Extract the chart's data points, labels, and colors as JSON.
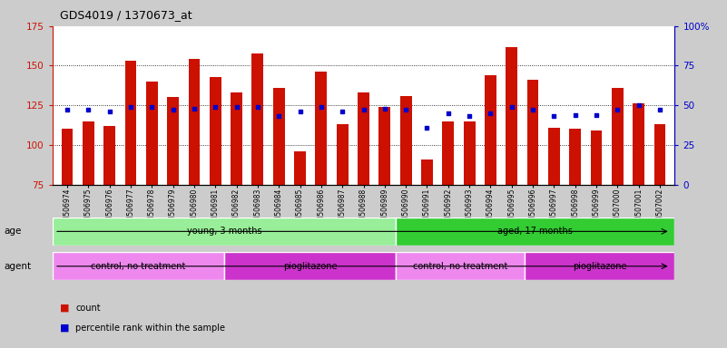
{
  "title": "GDS4019 / 1370673_at",
  "samples": [
    "GSM506974",
    "GSM506975",
    "GSM506976",
    "GSM506977",
    "GSM506978",
    "GSM506979",
    "GSM506980",
    "GSM506981",
    "GSM506982",
    "GSM506983",
    "GSM506984",
    "GSM506985",
    "GSM506986",
    "GSM506987",
    "GSM506988",
    "GSM506989",
    "GSM506990",
    "GSM506991",
    "GSM506992",
    "GSM506993",
    "GSM506994",
    "GSM506995",
    "GSM506996",
    "GSM506997",
    "GSM506998",
    "GSM506999",
    "GSM507000",
    "GSM507001",
    "GSM507002"
  ],
  "counts": [
    110,
    115,
    112,
    153,
    140,
    130,
    154,
    143,
    133,
    158,
    136,
    96,
    146,
    113,
    133,
    124,
    131,
    91,
    115,
    115,
    144,
    162,
    141,
    111,
    110,
    109,
    136,
    126,
    113
  ],
  "percentile_ranks": [
    47,
    47,
    46,
    49,
    49,
    47,
    48,
    49,
    49,
    49,
    43,
    46,
    49,
    46,
    47,
    48,
    47,
    36,
    45,
    43,
    45,
    49,
    47,
    43,
    44,
    44,
    47,
    50,
    47
  ],
  "bar_color": "#cc1100",
  "dot_color": "#0000cc",
  "ylim_left": [
    75,
    175
  ],
  "ylim_right": [
    0,
    100
  ],
  "yticks_left": [
    75,
    100,
    125,
    150,
    175
  ],
  "yticks_right": [
    0,
    25,
    50,
    75,
    100
  ],
  "grid_lines": [
    100,
    125,
    150
  ],
  "groups_age": [
    {
      "label": "young, 3 months",
      "start": 0,
      "end": 16,
      "color": "#99ee99"
    },
    {
      "label": "aged, 17 months",
      "start": 16,
      "end": 29,
      "color": "#33cc33"
    }
  ],
  "groups_agent": [
    {
      "label": "control, no treatment",
      "start": 0,
      "end": 8,
      "color": "#ee88ee"
    },
    {
      "label": "pioglitazone",
      "start": 8,
      "end": 16,
      "color": "#cc33cc"
    },
    {
      "label": "control, no treatment",
      "start": 16,
      "end": 22,
      "color": "#ee88ee"
    },
    {
      "label": "pioglitazone",
      "start": 22,
      "end": 29,
      "color": "#cc33cc"
    }
  ],
  "age_label": "age",
  "agent_label": "agent",
  "legend_count": "count",
  "legend_pct": "percentile rank within the sample",
  "fig_bg": "#cccccc",
  "plot_bg": "#ffffff",
  "title_fontsize": 9,
  "tick_fontsize": 5.5,
  "axis_color_left": "#cc1100",
  "axis_color_right": "#0000cc",
  "strip_text_fontsize": 7,
  "strip_label_fontsize": 7.5
}
